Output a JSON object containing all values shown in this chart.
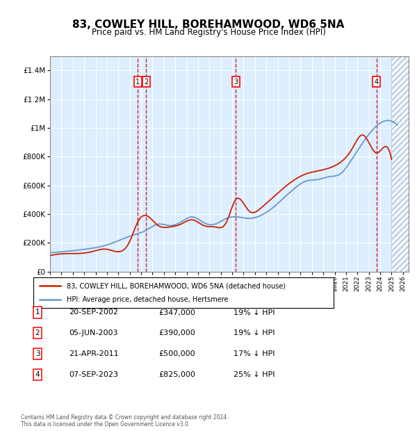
{
  "title": "83, COWLEY HILL, BOREHAMWOOD, WD6 5NA",
  "subtitle": "Price paid vs. HM Land Registry's House Price Index (HPI)",
  "ylabel_ticks": [
    "£0",
    "£200K",
    "£400K",
    "£600K",
    "£800K",
    "£1M",
    "£1.2M",
    "£1.4M"
  ],
  "ylim": [
    0,
    1500000
  ],
  "xlim_start": 1995.0,
  "xlim_end": 2026.5,
  "background_color": "#ffffff",
  "plot_bg_color": "#ddeeff",
  "grid_color": "#ffffff",
  "hpi_line_color": "#6699cc",
  "price_line_color": "#cc2200",
  "dashed_line_color": "#cc0000",
  "transactions": [
    {
      "num": 1,
      "date_str": "20-SEP-2002",
      "date_x": 2002.72,
      "price": 347000,
      "hpi_pct": "19%",
      "label": "1"
    },
    {
      "num": 2,
      "date_str": "05-JUN-2003",
      "date_x": 2003.43,
      "price": 390000,
      "hpi_pct": "19%",
      "label": "2"
    },
    {
      "num": 3,
      "date_str": "21-APR-2011",
      "date_x": 2011.3,
      "price": 500000,
      "hpi_pct": "17%",
      "label": "3"
    },
    {
      "num": 4,
      "date_str": "07-SEP-2023",
      "date_x": 2023.68,
      "price": 825000,
      "hpi_pct": "25%",
      "label": "4"
    }
  ],
  "legend_label_price": "83, COWLEY HILL, BOREHAMWOOD, WD6 5NA (detached house)",
  "legend_label_hpi": "HPI: Average price, detached house, Hertsmere",
  "footer": "Contains HM Land Registry data © Crown copyright and database right 2024.\nThis data is licensed under the Open Government Licence v3.0.",
  "table_rows": [
    {
      "num": 1,
      "date": "20-SEP-2002",
      "price": "£347,000",
      "note": "19% ↓ HPI"
    },
    {
      "num": 2,
      "date": "05-JUN-2003",
      "price": "£390,000",
      "note": "19% ↓ HPI"
    },
    {
      "num": 3,
      "date": "21-APR-2011",
      "price": "£500,000",
      "note": "17% ↓ HPI"
    },
    {
      "num": 4,
      "date": "07-SEP-2023",
      "price": "£825,000",
      "note": "25% ↓ HPI"
    }
  ]
}
